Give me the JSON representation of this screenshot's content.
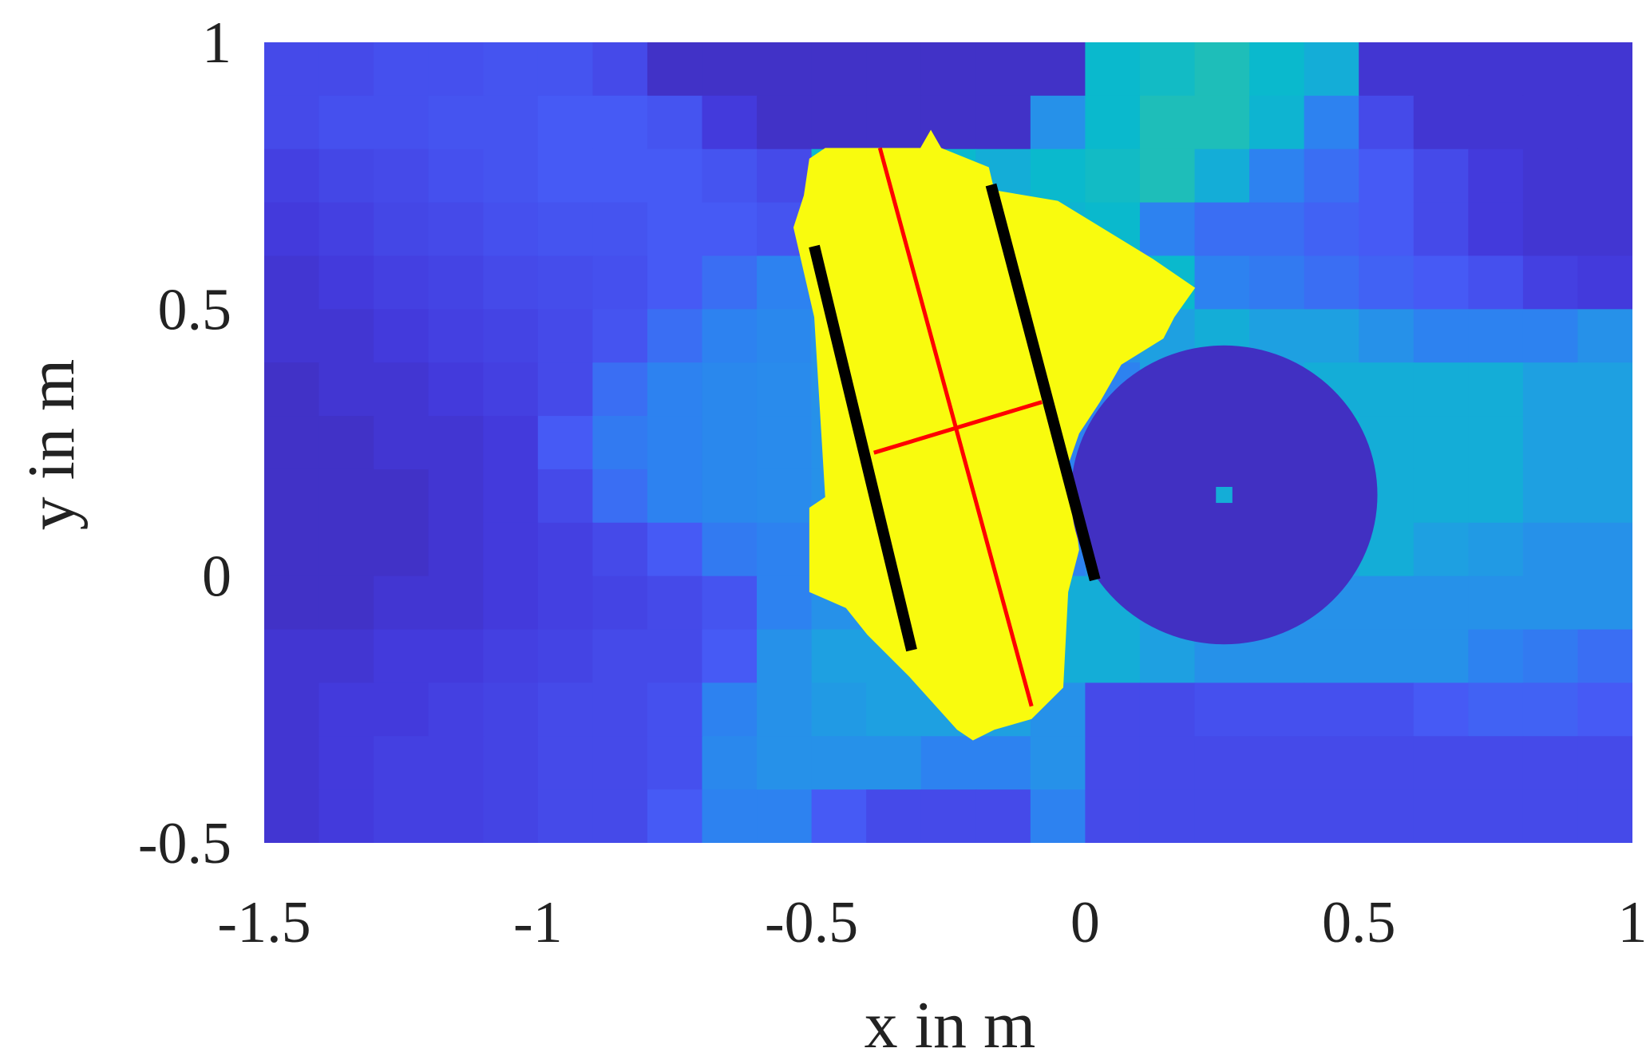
{
  "chart_data": {
    "type": "heatmap",
    "title": "",
    "xlabel": "x in m",
    "ylabel": "y in m",
    "xlim": [
      -1.5,
      1
    ],
    "ylim": [
      -0.5,
      1
    ],
    "xticks": [
      -1.5,
      -1,
      -0.5,
      0,
      0.5,
      1
    ],
    "xtick_labels": [
      "-1.5",
      "-1",
      "-0.5",
      "0",
      "0.5",
      "1"
    ],
    "yticks": [
      -0.5,
      0,
      0.5,
      1
    ],
    "ytick_labels": [
      "-0.5",
      "0",
      "0.5",
      "1"
    ],
    "colormap": "parula",
    "color_range": [
      0,
      1
    ],
    "grid": false,
    "grid_x_centers": [
      -1.45,
      -1.35,
      -1.25,
      -1.15,
      -1.05,
      -0.95,
      -0.85,
      -0.75,
      -0.65,
      -0.55,
      -0.45,
      -0.35,
      -0.25,
      -0.15,
      -0.05,
      0.05,
      0.15,
      0.25,
      0.35,
      0.45,
      0.55,
      0.65,
      0.75,
      0.85,
      0.95
    ],
    "grid_y_centers": [
      0.95,
      0.85,
      0.75,
      0.65,
      0.55,
      0.45,
      0.35,
      0.25,
      0.15,
      0.05,
      -0.05,
      -0.15,
      -0.25,
      -0.35,
      -0.45
    ],
    "values": [
      [
        0.15,
        0.15,
        0.17,
        0.17,
        0.18,
        0.18,
        0.15,
        0.06,
        0.06,
        0.06,
        0.06,
        0.06,
        0.06,
        0.06,
        0.06,
        0.5,
        0.52,
        0.55,
        0.5,
        0.45,
        0.08,
        0.08,
        0.08,
        0.08,
        0.08
      ],
      [
        0.15,
        0.17,
        0.17,
        0.18,
        0.18,
        0.2,
        0.2,
        0.18,
        0.1,
        0.06,
        0.06,
        0.06,
        0.06,
        0.06,
        0.35,
        0.5,
        0.55,
        0.55,
        0.48,
        0.3,
        0.15,
        0.08,
        0.08,
        0.08,
        0.08
      ],
      [
        0.12,
        0.14,
        0.15,
        0.17,
        0.18,
        0.2,
        0.2,
        0.2,
        0.18,
        0.15,
        0.5,
        0.5,
        0.5,
        0.45,
        0.5,
        0.52,
        0.55,
        0.45,
        0.3,
        0.25,
        0.2,
        0.15,
        0.1,
        0.08,
        0.08
      ],
      [
        0.1,
        0.12,
        0.14,
        0.15,
        0.17,
        0.18,
        0.18,
        0.2,
        0.2,
        0.18,
        0.3,
        0.9,
        0.9,
        0.45,
        0.48,
        0.5,
        0.3,
        0.25,
        0.25,
        0.22,
        0.2,
        0.15,
        0.1,
        0.08,
        0.08
      ],
      [
        0.08,
        0.1,
        0.12,
        0.13,
        0.15,
        0.16,
        0.17,
        0.2,
        0.25,
        0.3,
        0.35,
        0.9,
        0.9,
        0.9,
        0.9,
        0.6,
        0.5,
        0.3,
        0.28,
        0.25,
        0.22,
        0.2,
        0.17,
        0.12,
        0.1
      ],
      [
        0.08,
        0.08,
        0.1,
        0.12,
        0.13,
        0.15,
        0.18,
        0.25,
        0.3,
        0.32,
        0.35,
        0.9,
        0.9,
        0.9,
        0.9,
        0.35,
        0.4,
        0.45,
        0.4,
        0.4,
        0.35,
        0.3,
        0.3,
        0.3,
        0.35
      ],
      [
        0.06,
        0.08,
        0.08,
        0.1,
        0.12,
        0.15,
        0.25,
        0.3,
        0.32,
        0.33,
        0.35,
        0.9,
        0.9,
        0.9,
        0.3,
        0.3,
        0.4,
        0.4,
        0.4,
        0.45,
        0.45,
        0.45,
        0.45,
        0.4,
        0.4
      ],
      [
        0.06,
        0.06,
        0.08,
        0.08,
        0.1,
        0.2,
        0.28,
        0.3,
        0.32,
        0.33,
        0.35,
        0.9,
        0.9,
        0.9,
        0.3,
        0.3,
        0.4,
        0.45,
        0.45,
        0.5,
        0.45,
        0.45,
        0.45,
        0.4,
        0.4
      ],
      [
        0.06,
        0.06,
        0.06,
        0.08,
        0.1,
        0.15,
        0.25,
        0.3,
        0.32,
        0.33,
        0.35,
        0.9,
        0.9,
        0.9,
        0.3,
        0.3,
        0.4,
        0.45,
        0.45,
        0.45,
        0.45,
        0.45,
        0.45,
        0.4,
        0.4
      ],
      [
        0.06,
        0.06,
        0.06,
        0.08,
        0.1,
        0.12,
        0.15,
        0.2,
        0.28,
        0.3,
        0.35,
        0.9,
        0.9,
        0.9,
        0.3,
        0.35,
        0.4,
        0.4,
        0.4,
        0.4,
        0.45,
        0.4,
        0.38,
        0.35,
        0.35
      ],
      [
        0.06,
        0.06,
        0.08,
        0.08,
        0.1,
        0.12,
        0.13,
        0.15,
        0.18,
        0.3,
        0.35,
        0.35,
        0.9,
        0.9,
        0.45,
        0.45,
        0.4,
        0.38,
        0.35,
        0.35,
        0.35,
        0.35,
        0.35,
        0.35,
        0.35
      ],
      [
        0.08,
        0.08,
        0.1,
        0.1,
        0.12,
        0.13,
        0.15,
        0.15,
        0.2,
        0.35,
        0.4,
        0.4,
        0.4,
        0.4,
        0.45,
        0.45,
        0.4,
        0.35,
        0.35,
        0.35,
        0.35,
        0.35,
        0.3,
        0.28,
        0.25
      ],
      [
        0.08,
        0.1,
        0.1,
        0.12,
        0.13,
        0.15,
        0.15,
        0.17,
        0.3,
        0.35,
        0.38,
        0.4,
        0.4,
        0.4,
        0.35,
        0.15,
        0.15,
        0.17,
        0.17,
        0.17,
        0.17,
        0.2,
        0.22,
        0.22,
        0.2
      ],
      [
        0.08,
        0.1,
        0.12,
        0.12,
        0.13,
        0.15,
        0.15,
        0.17,
        0.32,
        0.35,
        0.35,
        0.35,
        0.3,
        0.3,
        0.35,
        0.15,
        0.15,
        0.15,
        0.15,
        0.15,
        0.15,
        0.15,
        0.15,
        0.15,
        0.15
      ],
      [
        0.08,
        0.1,
        0.12,
        0.12,
        0.13,
        0.15,
        0.15,
        0.2,
        0.3,
        0.3,
        0.2,
        0.15,
        0.15,
        0.15,
        0.3,
        0.15,
        0.15,
        0.15,
        0.15,
        0.15,
        0.15,
        0.15,
        0.15,
        0.15,
        0.15
      ]
    ],
    "regions": [
      {
        "shape": "polygon",
        "value": 1.0,
        "points": [
          [
            -0.475,
            0.802
          ],
          [
            -0.301,
            0.802
          ],
          [
            -0.282,
            0.836
          ],
          [
            -0.263,
            0.802
          ],
          [
            -0.176,
            0.766
          ],
          [
            -0.166,
            0.723
          ],
          [
            -0.05,
            0.703
          ],
          [
            0.124,
            0.594
          ],
          [
            0.201,
            0.54
          ],
          [
            0.163,
            0.485
          ],
          [
            0.143,
            0.445
          ],
          [
            0.066,
            0.396
          ],
          [
            0.027,
            0.326
          ],
          [
            -0.011,
            0.267
          ],
          [
            -0.031,
            0.208
          ],
          [
            -0.011,
            0.049
          ],
          [
            -0.031,
            -0.03
          ],
          [
            -0.04,
            -0.209
          ],
          [
            -0.098,
            -0.268
          ],
          [
            -0.166,
            -0.288
          ],
          [
            -0.205,
            -0.308
          ],
          [
            -0.234,
            -0.288
          ],
          [
            -0.321,
            -0.189
          ],
          [
            -0.398,
            -0.11
          ],
          [
            -0.437,
            -0.06
          ],
          [
            -0.504,
            -0.03
          ],
          [
            -0.504,
            0.128
          ],
          [
            -0.475,
            0.148
          ],
          [
            -0.495,
            0.485
          ],
          [
            -0.533,
            0.653
          ],
          [
            -0.514,
            0.713
          ],
          [
            -0.504,
            0.782
          ]
        ]
      },
      {
        "shape": "circle",
        "value": 0.05,
        "center": [
          0.254,
          0.152
        ],
        "radius": 0.28
      },
      {
        "shape": "square",
        "value": 0.45,
        "center": [
          0.254,
          0.152
        ],
        "size": 0.03
      }
    ],
    "overlay_lines": [
      {
        "color": "#000000",
        "points": [
          [
            -0.495,
            0.618
          ],
          [
            -0.317,
            -0.139
          ]
        ]
      },
      {
        "color": "#000000",
        "points": [
          [
            -0.172,
            0.733
          ],
          [
            0.018,
            -0.007
          ]
        ]
      },
      {
        "color": "#ff0000",
        "points": [
          [
            -0.375,
            0.802
          ],
          [
            -0.098,
            -0.244
          ]
        ]
      },
      {
        "color": "#ff0000",
        "points": [
          [
            -0.386,
            0.231
          ],
          [
            -0.079,
            0.326
          ]
        ]
      }
    ]
  }
}
